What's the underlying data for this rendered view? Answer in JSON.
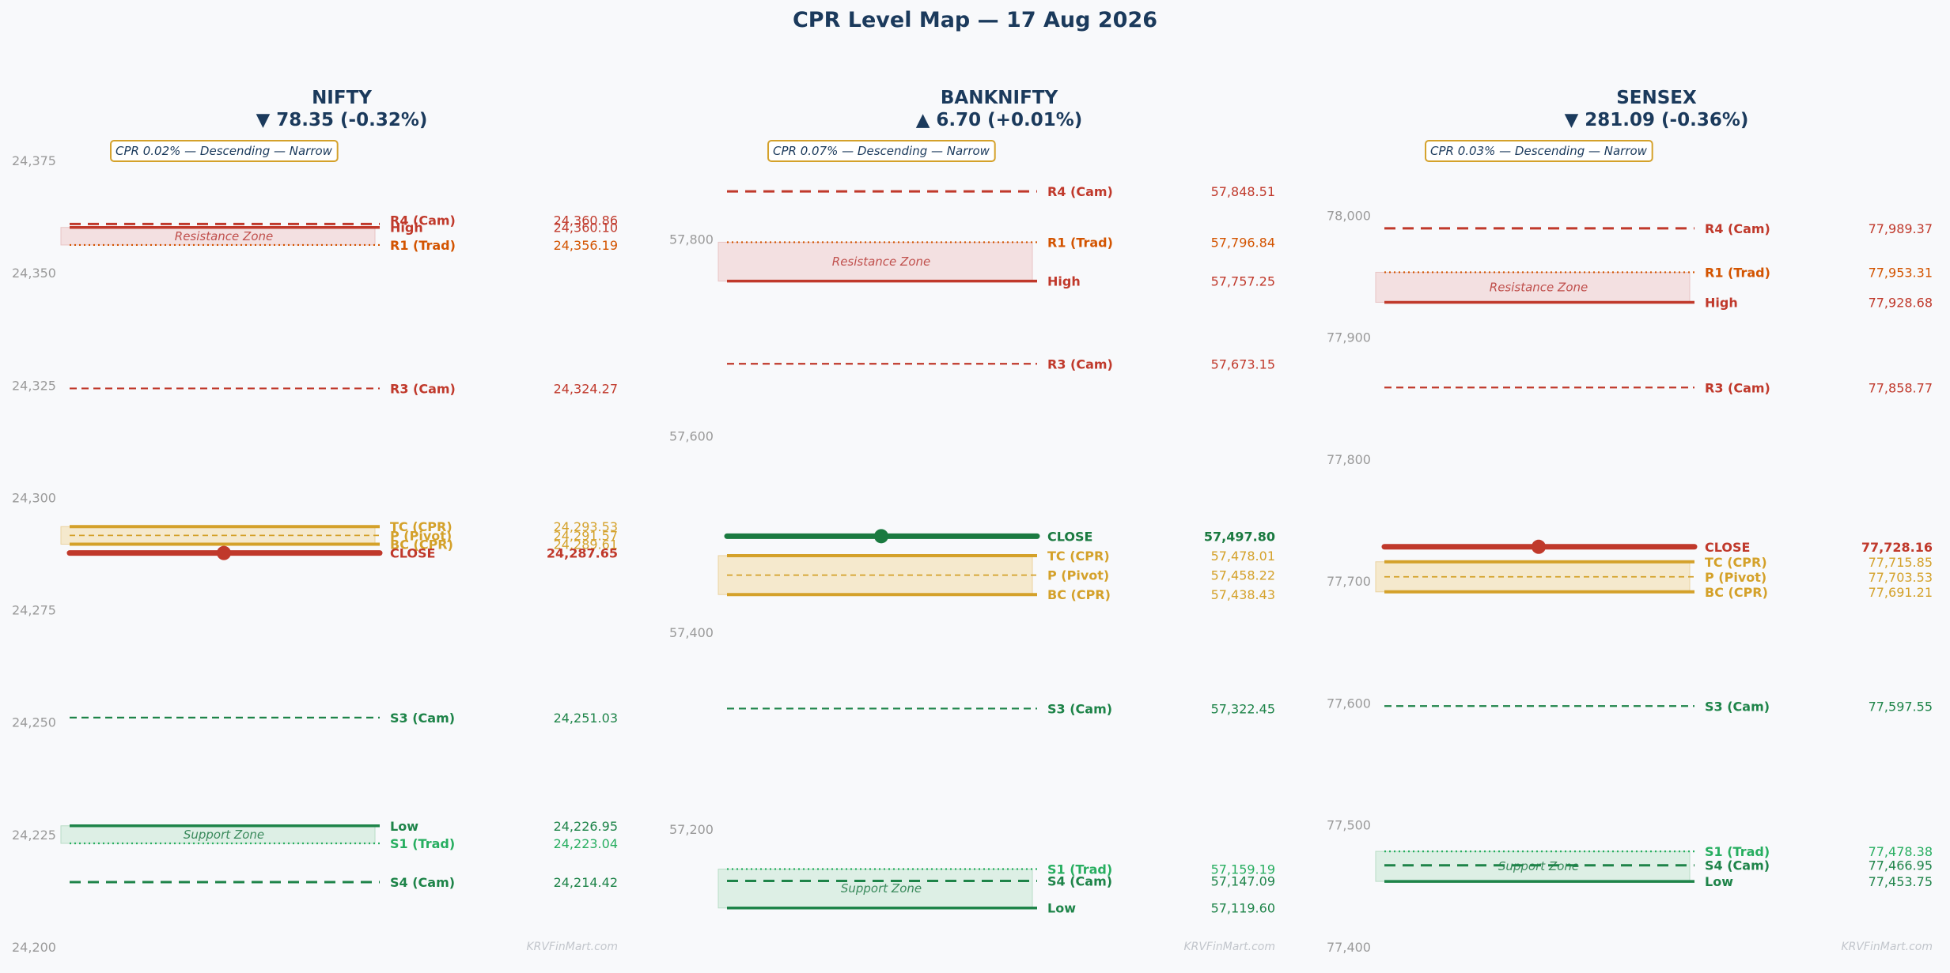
{
  "page": {
    "title": "CPR Level Map — 17 Aug 2026",
    "watermark": "KRVFinMart.com",
    "zone_labels": {
      "resistance": "Resistance Zone",
      "support": "Support Zone"
    }
  },
  "colors": {
    "resistance": "#c0392b",
    "trad_resistance": "#d35400",
    "cpr": "#d4a12a",
    "support": "#1e8449",
    "trad_support": "#27ae60",
    "title": "#1b3a5c",
    "resistance_zone": "#f2dcdc",
    "support_zone": "#d8ede0",
    "cpr_zone": "#f5e6c4"
  },
  "chart_data": [
    {
      "type": "level-map",
      "title": "NIFTY",
      "change": "▼ 78.35 (-0.32%)",
      "direction": "down",
      "cpr_note": "CPR 0.02% — Descending — Narrow",
      "ylim": [
        24200,
        24375
      ],
      "yticks": [
        24200,
        24225,
        24250,
        24275,
        24300,
        24325,
        24350,
        24375
      ],
      "ytick_labels": [
        "24,200",
        "24,225",
        "24,250",
        "24,275",
        "24,300",
        "24,325",
        "24,350",
        "24,375"
      ],
      "resistance_zone": [
        24356.19,
        24360.1
      ],
      "support_zone": [
        24223.04,
        24226.95
      ],
      "close_color": "#c0392b",
      "levels": [
        {
          "name": "R4 (Cam)",
          "value": 24360.86,
          "display": "24,360.86",
          "kind": "cam_r",
          "label_value": 24361.7
        },
        {
          "name": "High",
          "value": 24360.1,
          "display": "24,360.10",
          "kind": "high",
          "label_value": 24360.1
        },
        {
          "name": "R1 (Trad)",
          "value": 24356.19,
          "display": "24,356.19",
          "kind": "trad_r",
          "label_value": 24356.19
        },
        {
          "name": "R3 (Cam)",
          "value": 24324.27,
          "display": "24,324.27",
          "kind": "cam_r3",
          "label_value": 24324.27
        },
        {
          "name": "TC (CPR)",
          "value": 24293.53,
          "display": "24,293.53",
          "kind": "tc",
          "label_value": 24293.53
        },
        {
          "name": "P (Pivot)",
          "value": 24291.57,
          "display": "24,291.57",
          "kind": "pivot",
          "label_value": 24291.57
        },
        {
          "name": "BC (CPR)",
          "value": 24289.61,
          "display": "24,289.61",
          "kind": "bc",
          "label_value": 24289.61
        },
        {
          "name": "CLOSE",
          "value": 24287.65,
          "display": "24,287.65",
          "kind": "close",
          "label_value": 24287.65
        },
        {
          "name": "S3 (Cam)",
          "value": 24251.03,
          "display": "24,251.03",
          "kind": "cam_s3",
          "label_value": 24251.03
        },
        {
          "name": "Low",
          "value": 24226.95,
          "display": "24,226.95",
          "kind": "low",
          "label_value": 24226.95
        },
        {
          "name": "S1 (Trad)",
          "value": 24223.04,
          "display": "24,223.04",
          "kind": "trad_s",
          "label_value": 24223.04
        },
        {
          "name": "S4 (Cam)",
          "value": 24214.42,
          "display": "24,214.42",
          "kind": "cam_s",
          "label_value": 24214.42
        }
      ]
    },
    {
      "type": "level-map",
      "title": "BANKNIFTY",
      "change": "▲ 6.70 (+0.01%)",
      "direction": "up",
      "cpr_note": "CPR 0.07% — Descending — Narrow",
      "ylim": [
        57080,
        57880
      ],
      "yticks": [
        57200,
        57400,
        57600,
        57800
      ],
      "ytick_labels": [
        "57,200",
        "57,400",
        "57,600",
        "57,800"
      ],
      "resistance_zone": [
        57757.25,
        57796.84
      ],
      "support_zone": [
        57119.6,
        57159.19
      ],
      "close_color": "#1a7a40",
      "levels": [
        {
          "name": "R4 (Cam)",
          "value": 57848.51,
          "display": "57,848.51",
          "kind": "cam_r",
          "label_value": 57848.51
        },
        {
          "name": "R1 (Trad)",
          "value": 57796.84,
          "display": "57,796.84",
          "kind": "trad_r",
          "label_value": 57796.84
        },
        {
          "name": "High",
          "value": 57757.25,
          "display": "57,757.25",
          "kind": "high",
          "label_value": 57757.25
        },
        {
          "name": "R3 (Cam)",
          "value": 57673.15,
          "display": "57,673.15",
          "kind": "cam_r3",
          "label_value": 57673.15
        },
        {
          "name": "CLOSE",
          "value": 57497.8,
          "display": "57,497.80",
          "kind": "close",
          "label_value": 57497.8
        },
        {
          "name": "TC (CPR)",
          "value": 57478.01,
          "display": "57,478.01",
          "kind": "tc",
          "label_value": 57478.01
        },
        {
          "name": "P (Pivot)",
          "value": 57458.22,
          "display": "57,458.22",
          "kind": "pivot",
          "label_value": 57458.22
        },
        {
          "name": "BC (CPR)",
          "value": 57438.43,
          "display": "57,438.43",
          "kind": "bc",
          "label_value": 57438.43
        },
        {
          "name": "S3 (Cam)",
          "value": 57322.45,
          "display": "57,322.45",
          "kind": "cam_s3",
          "label_value": 57322.45
        },
        {
          "name": "S1 (Trad)",
          "value": 57159.19,
          "display": "57,159.19",
          "kind": "trad_s",
          "label_value": 57159.19
        },
        {
          "name": "S4 (Cam)",
          "value": 57147.09,
          "display": "57,147.09",
          "kind": "cam_s",
          "label_value": 57147.09
        },
        {
          "name": "Low",
          "value": 57119.6,
          "display": "57,119.60",
          "kind": "low",
          "label_value": 57119.6
        }
      ]
    },
    {
      "type": "level-map",
      "title": "SENSEX",
      "change": "▼ 281.09 (-0.36%)",
      "direction": "down",
      "cpr_note": "CPR 0.03% — Descending — Narrow",
      "ylim": [
        77400,
        78045
      ],
      "yticks": [
        77400,
        77500,
        77600,
        77700,
        77800,
        77900,
        78000
      ],
      "ytick_labels": [
        "77,400",
        "77,500",
        "77,600",
        "77,700",
        "77,800",
        "77,900",
        "78,000"
      ],
      "resistance_zone": [
        77928.68,
        77953.31
      ],
      "support_zone": [
        77453.75,
        77478.38
      ],
      "close_color": "#c0392b",
      "levels": [
        {
          "name": "R4 (Cam)",
          "value": 77989.37,
          "display": "77,989.37",
          "kind": "cam_r",
          "label_value": 77989.37
        },
        {
          "name": "R1 (Trad)",
          "value": 77953.31,
          "display": "77,953.31",
          "kind": "trad_r",
          "label_value": 77953.31
        },
        {
          "name": "High",
          "value": 77928.68,
          "display": "77,928.68",
          "kind": "high",
          "label_value": 77928.68
        },
        {
          "name": "R3 (Cam)",
          "value": 77858.77,
          "display": "77,858.77",
          "kind": "cam_r3",
          "label_value": 77858.77
        },
        {
          "name": "CLOSE",
          "value": 77728.16,
          "display": "77,728.16",
          "kind": "close",
          "label_value": 77728.16
        },
        {
          "name": "TC (CPR)",
          "value": 77715.85,
          "display": "77,715.85",
          "kind": "tc",
          "label_value": 77715.85
        },
        {
          "name": "P (Pivot)",
          "value": 77703.53,
          "display": "77,703.53",
          "kind": "pivot",
          "label_value": 77703.53
        },
        {
          "name": "BC (CPR)",
          "value": 77691.21,
          "display": "77,691.21",
          "kind": "bc",
          "label_value": 77691.21
        },
        {
          "name": "S3 (Cam)",
          "value": 77597.55,
          "display": "77,597.55",
          "kind": "cam_s3",
          "label_value": 77597.55
        },
        {
          "name": "S1 (Trad)",
          "value": 77478.38,
          "display": "77,478.38",
          "kind": "trad_s",
          "label_value": 77478.38
        },
        {
          "name": "S4 (Cam)",
          "value": 77466.95,
          "display": "77,466.95",
          "kind": "cam_s",
          "label_value": 77466.95
        },
        {
          "name": "Low",
          "value": 77453.75,
          "display": "77,453.75",
          "kind": "low",
          "label_value": 77453.75
        }
      ]
    }
  ]
}
